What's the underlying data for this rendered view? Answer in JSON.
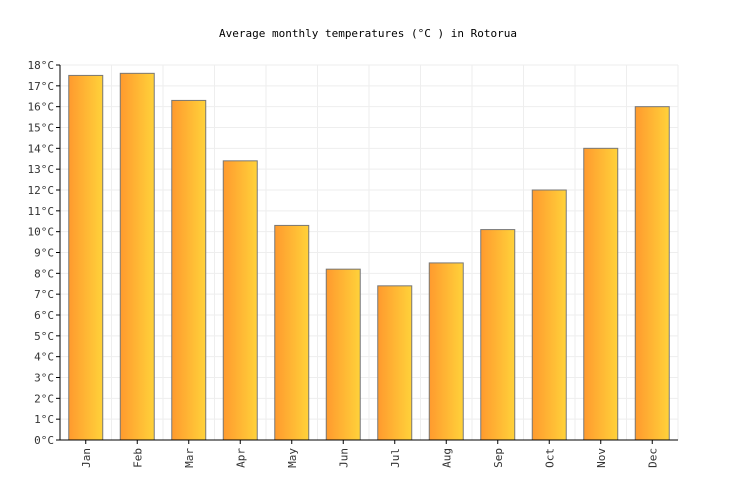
{
  "chart_data": {
    "type": "bar",
    "title": "Average monthly temperatures (°C ) in Rotorua",
    "xlabel": "",
    "ylabel": "",
    "categories": [
      "Jan",
      "Feb",
      "Mar",
      "Apr",
      "May",
      "Jun",
      "Jul",
      "Aug",
      "Sep",
      "Oct",
      "Nov",
      "Dec"
    ],
    "values": [
      17.5,
      17.6,
      16.3,
      13.4,
      10.3,
      8.2,
      7.4,
      8.5,
      10.1,
      12.0,
      14.0,
      16.0
    ],
    "ylim": [
      0,
      18
    ],
    "ytick_step": 1,
    "ytick_suffix": "°C",
    "grid": true,
    "legend": "none",
    "colors": {
      "bar_start": "#ff9a2e",
      "bar_end": "#ffd23a",
      "bar_stroke": "#777777",
      "grid": "#eeeeee",
      "axis": "#000000"
    }
  }
}
